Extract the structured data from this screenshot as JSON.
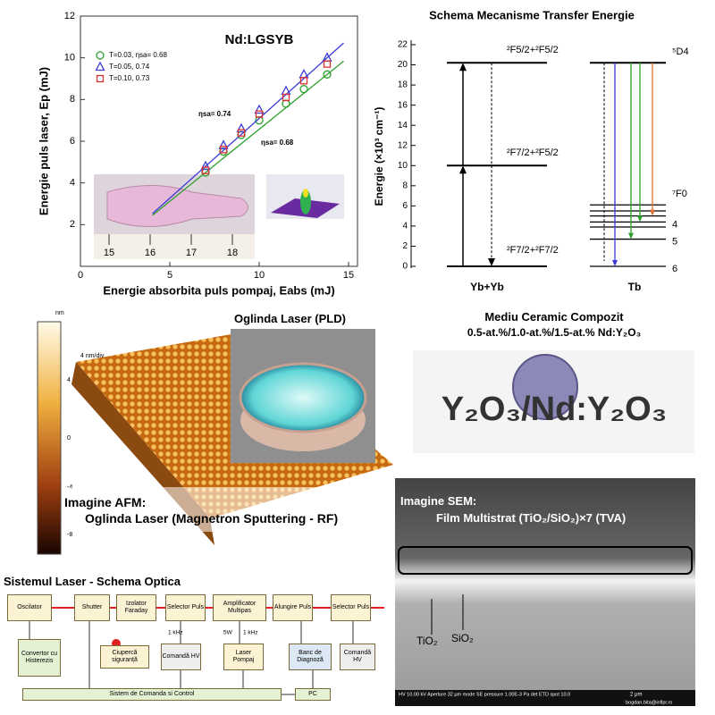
{
  "chart_data": {
    "type": "scatter",
    "title": "Nd:LGSYB",
    "x_label": "Energie absorbita puls pompaj, Eabs (mJ)",
    "y_label": "Energie puls laser, Ep (mJ)",
    "x": [
      7,
      8,
      9,
      10,
      11.5,
      12.5,
      13.8
    ],
    "series": [
      {
        "name": "T=0.03, ηsa= 0.68",
        "color": "#2ca02c",
        "marker": "circle",
        "values": [
          4.5,
          5.5,
          6.3,
          7.0,
          7.8,
          8.5,
          9.2
        ]
      },
      {
        "name": "T=0.05,         0.74",
        "color": "#3b3bd6",
        "marker": "triangle",
        "values": [
          4.8,
          5.8,
          6.6,
          7.5,
          8.4,
          9.2,
          10.0
        ]
      },
      {
        "name": "T=0.10,         0.73",
        "color": "#e03030",
        "marker": "square",
        "values": [
          4.6,
          5.6,
          6.4,
          7.3,
          8.1,
          8.9,
          9.7
        ]
      }
    ],
    "annotations": [
      "ηsa= 0.74",
      "ηsa= 0.68"
    ],
    "xlim": [
      0,
      15.5
    ],
    "xticks": [
      0,
      5,
      10,
      15
    ],
    "ylim": [
      0,
      12
    ],
    "yticks": [
      2,
      4,
      6,
      8,
      10,
      12
    ],
    "legend": "upper left",
    "ruler_labels": [
      "15",
      "16",
      "17",
      "18"
    ]
  },
  "energy_diagram": {
    "title": "Schema Mecanisme Transfer Energie",
    "y_label": "Energie (×10³ cm⁻¹)",
    "ylim": [
      0,
      22
    ],
    "yticks": [
      0,
      2,
      4,
      6,
      8,
      10,
      12,
      14,
      16,
      18,
      20,
      22
    ],
    "groups": [
      "Yb+Yb",
      "Tb"
    ],
    "yb_levels": [
      {
        "label": "²F5/2+²F5/2",
        "value": 20.2
      },
      {
        "label": "²F7/2+²F5/2",
        "value": 10
      },
      {
        "label": "²F7/2+²F7/2",
        "value": 0
      }
    ],
    "tb_levels": [
      {
        "label": "⁵D4",
        "value": 20.2
      },
      {
        "label": "⁷F0",
        "value": 6.1
      },
      {
        "value": 5.5
      },
      {
        "value": 5.0
      },
      {
        "label": "4",
        "value": 4.4
      },
      {
        "value": 3.9
      },
      {
        "label": "5",
        "value": 2.7
      },
      {
        "label": "6",
        "value": 0
      }
    ]
  },
  "afm": {
    "unit": "nm",
    "scale": [
      "4",
      "0",
      "-4",
      "-8"
    ],
    "zscale": "4 nm/div",
    "title": "Imagine AFM:",
    "caption": "Oglinda Laser (Magnetron Sputtering - RF)"
  },
  "mirror": {
    "title": "Oglinda Laser (PLD)"
  },
  "ceramic": {
    "title": "Mediu Ceramic Compozit",
    "subtitle": "0.5-at.%/1.0-at.%/1.5-at.% Nd:Y₂O₃",
    "sample_text": "Y₂O₃/Nd:Y₂O₃"
  },
  "sem": {
    "title": "Imagine SEM:",
    "caption": "Film Multistrat (TiO₂/SiO₂)×7 (TVA)",
    "labels": [
      "TiO₂",
      "SiO₂"
    ],
    "scalebar": "2 μm",
    "footer": "HV 10.00 kV   Aperture 32 μm   mode SE   pressure 1.00E-3 Pa   det ETD   spot 10.0",
    "credit": "bogdan.bita@inflpr.ro"
  },
  "schematic": {
    "title": "Sistemul Laser - Schema Optica",
    "nodes": [
      "Oscilator",
      "Shutter",
      "Izolator Faraday",
      "Selector Puls",
      "Amplificator Multipas",
      "Alungire Puls",
      "Selector Puls",
      "Convertor cu Histerezis",
      "Ciupercă siguranță",
      "Comandă HV",
      "Laser Pompaj",
      "Banc de Diagnoză",
      "Comandă HV",
      "Sistem de Comanda si Control",
      "PC"
    ],
    "notes": [
      "1 kHz",
      "5W",
      "1 kHz"
    ]
  }
}
